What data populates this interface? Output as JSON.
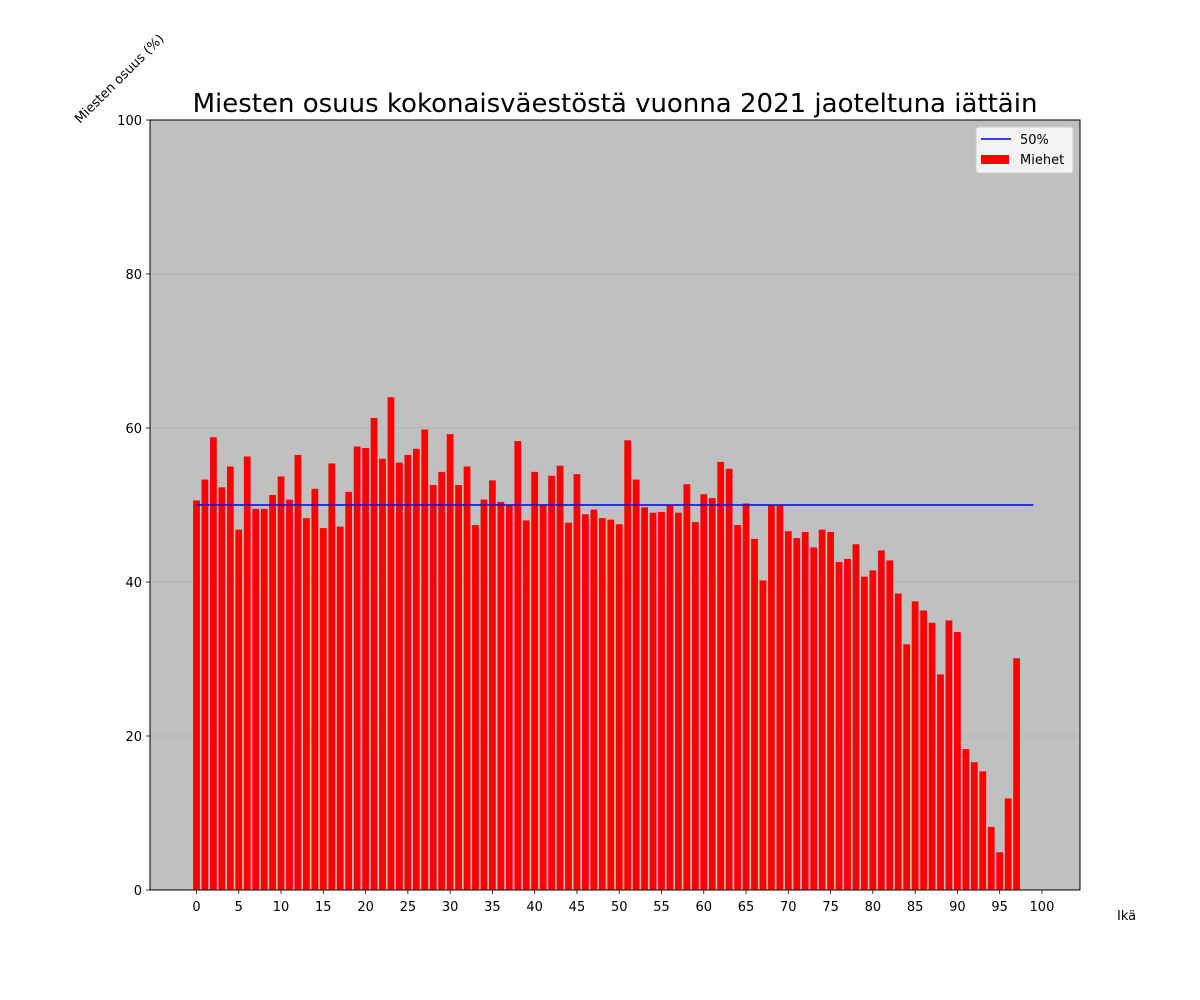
{
  "chart_data": {
    "type": "bar",
    "title": "Miesten osuus kokonaisväestöstä vuonna 2021 jaoteltuna iättäin",
    "xlabel": "Ikä",
    "ylabel": "Miesten osuus (%)",
    "xlim": [
      -5.5,
      104.5
    ],
    "ylim": [
      0,
      100
    ],
    "x_ticks": [
      0,
      5,
      10,
      15,
      20,
      25,
      30,
      35,
      40,
      45,
      50,
      55,
      60,
      65,
      70,
      75,
      80,
      85,
      90,
      95,
      100
    ],
    "y_ticks": [
      0,
      20,
      40,
      60,
      80,
      100
    ],
    "grid": "horizontal",
    "background": "#c0c0c0",
    "legend": {
      "placement": "top-right",
      "entries": [
        {
          "label": "50%",
          "kind": "line",
          "color": "#0000ff"
        },
        {
          "label": "Miehet",
          "kind": "bar",
          "color": "#ff0000"
        }
      ]
    },
    "series": [
      {
        "name": "Miehet",
        "kind": "bar",
        "color": "#ff0000",
        "x": [
          0,
          1,
          2,
          3,
          4,
          5,
          6,
          7,
          8,
          9,
          10,
          11,
          12,
          13,
          14,
          15,
          16,
          17,
          18,
          19,
          20,
          21,
          22,
          23,
          24,
          25,
          26,
          27,
          28,
          29,
          30,
          31,
          32,
          33,
          34,
          35,
          36,
          37,
          38,
          39,
          40,
          41,
          42,
          43,
          44,
          45,
          46,
          47,
          48,
          49,
          50,
          51,
          52,
          53,
          54,
          55,
          56,
          57,
          58,
          59,
          60,
          61,
          62,
          63,
          64,
          65,
          66,
          67,
          68,
          69,
          70,
          71,
          72,
          73,
          74,
          75,
          76,
          77,
          78,
          79,
          80,
          81,
          82,
          83,
          84,
          85,
          86,
          87,
          88,
          89,
          90,
          91,
          92,
          93,
          94,
          95,
          96,
          97
        ],
        "values": [
          50.6,
          53.3,
          58.8,
          52.3,
          55.0,
          46.8,
          56.3,
          49.5,
          49.5,
          51.3,
          53.7,
          50.7,
          56.5,
          48.3,
          52.1,
          47.0,
          55.4,
          47.2,
          51.7,
          57.6,
          57.4,
          61.3,
          56.0,
          64.0,
          55.5,
          56.5,
          57.3,
          59.8,
          52.6,
          54.3,
          59.2,
          52.6,
          55.0,
          47.4,
          50.7,
          53.2,
          50.4,
          50.0,
          58.3,
          48.0,
          54.3,
          50.0,
          53.8,
          55.1,
          47.7,
          54.0,
          48.8,
          49.4,
          48.3,
          48.1,
          47.5,
          58.4,
          53.3,
          49.7,
          49.0,
          49.1,
          50.0,
          49.0,
          52.7,
          47.8,
          51.4,
          50.9,
          55.6,
          54.7,
          47.4,
          50.2,
          45.6,
          40.2,
          50.0,
          50.0,
          46.6,
          45.7,
          46.5,
          44.5,
          46.8,
          46.5,
          42.6,
          43.0,
          44.9,
          40.7,
          41.5,
          44.1,
          42.8,
          38.5,
          31.9,
          37.5,
          36.3,
          34.7,
          28.0,
          35.0,
          33.5,
          18.3,
          16.6,
          15.4,
          8.2,
          4.9,
          11.9,
          30.1
        ]
      },
      {
        "name": "50%",
        "kind": "line",
        "color": "#0000ff",
        "x": [
          0,
          99
        ],
        "values": [
          50,
          50
        ]
      }
    ]
  }
}
